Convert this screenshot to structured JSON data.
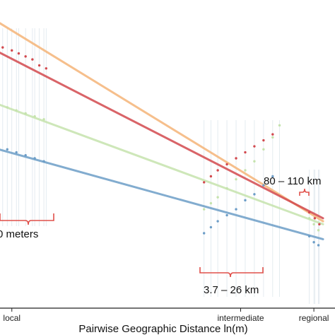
{
  "chart_data": {
    "type": "scatter",
    "xlabel": "Pairwise Geographic Distance ln(m)",
    "ylabel": "",
    "x_ticks": [
      {
        "label": "local",
        "x": 5.0
      },
      {
        "label": "intermediate",
        "x": 10.0
      },
      {
        "label": "regional",
        "x": 11.6
      }
    ],
    "xlim": [
      4.0,
      12.0
    ],
    "ylim": [
      0.0,
      1.0
    ],
    "grid": false,
    "series": [
      {
        "color": "#f4b478",
        "line": [
          [
            4.0,
            1.02
          ],
          [
            11.8,
            0.29
          ]
        ],
        "points": []
      },
      {
        "color": "#d2494e",
        "line": [
          [
            4.0,
            0.91
          ],
          [
            11.8,
            0.3
          ]
        ],
        "points": [
          [
            4.1,
            0.93
          ],
          [
            4.25,
            0.92
          ],
          [
            4.4,
            0.91
          ],
          [
            4.6,
            0.89
          ],
          [
            4.8,
            0.87
          ],
          [
            5.0,
            0.86
          ],
          [
            5.15,
            0.85
          ],
          [
            5.3,
            0.84
          ],
          [
            5.45,
            0.83
          ],
          [
            5.6,
            0.81
          ],
          [
            5.75,
            0.8
          ],
          [
            9.2,
            0.42
          ],
          [
            9.35,
            0.44
          ],
          [
            9.5,
            0.46
          ],
          [
            9.7,
            0.48
          ],
          [
            9.9,
            0.5
          ],
          [
            10.1,
            0.52
          ],
          [
            10.3,
            0.54
          ],
          [
            10.5,
            0.56
          ],
          [
            10.7,
            0.58
          ],
          [
            11.5,
            0.32
          ],
          [
            11.62,
            0.3
          ],
          [
            11.72,
            0.28
          ]
        ]
      },
      {
        "color": "#c5e3ad",
        "line": [
          [
            4.0,
            0.72
          ],
          [
            11.8,
            0.28
          ]
        ],
        "points": [
          [
            4.1,
            0.71
          ],
          [
            4.3,
            0.7
          ],
          [
            4.5,
            0.69
          ],
          [
            4.7,
            0.68
          ],
          [
            4.9,
            0.67
          ],
          [
            5.1,
            0.66
          ],
          [
            5.3,
            0.65
          ],
          [
            5.5,
            0.64
          ],
          [
            5.7,
            0.63
          ],
          [
            9.2,
            0.33
          ],
          [
            9.35,
            0.35
          ],
          [
            9.5,
            0.37
          ],
          [
            9.7,
            0.4
          ],
          [
            9.9,
            0.43
          ],
          [
            10.1,
            0.46
          ],
          [
            10.3,
            0.49
          ],
          [
            10.5,
            0.53
          ],
          [
            10.7,
            0.57
          ],
          [
            10.85,
            0.61
          ],
          [
            11.5,
            0.3
          ],
          [
            11.6,
            0.28
          ],
          [
            11.7,
            0.26
          ]
        ]
      },
      {
        "color": "#6c9dc7",
        "line": [
          [
            4.0,
            0.56
          ],
          [
            11.8,
            0.23
          ]
        ],
        "points": [
          [
            4.1,
            0.58
          ],
          [
            4.3,
            0.56
          ],
          [
            4.5,
            0.55
          ],
          [
            4.7,
            0.54
          ],
          [
            4.9,
            0.53
          ],
          [
            5.1,
            0.52
          ],
          [
            5.3,
            0.51
          ],
          [
            5.5,
            0.5
          ],
          [
            5.7,
            0.49
          ],
          [
            9.2,
            0.25
          ],
          [
            9.35,
            0.27
          ],
          [
            9.5,
            0.29
          ],
          [
            9.7,
            0.31
          ],
          [
            9.9,
            0.33
          ],
          [
            10.1,
            0.36
          ],
          [
            10.3,
            0.38
          ],
          [
            10.5,
            0.41
          ],
          [
            10.7,
            0.44
          ],
          [
            11.5,
            0.24
          ],
          [
            11.6,
            0.22
          ],
          [
            11.7,
            0.21
          ]
        ]
      }
    ],
    "annotations": [
      {
        "text": "0 meters",
        "x_range": [
          4.0,
          5.6
        ]
      },
      {
        "text": "3.7 – 26 km",
        "x_range": [
          9.2,
          10.85
        ]
      },
      {
        "text": "80 – 110 km",
        "x_range": [
          11.5,
          11.75
        ]
      }
    ]
  }
}
